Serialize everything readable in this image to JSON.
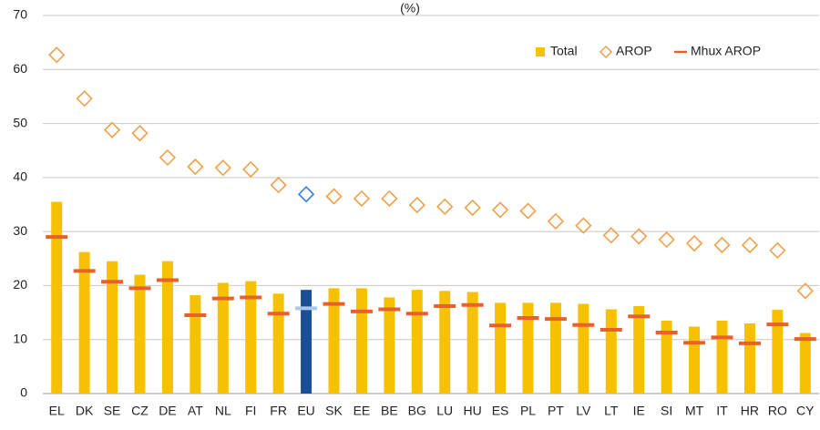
{
  "chart_data": {
    "type": "bar",
    "title": "(%)",
    "categories": [
      "EL",
      "DK",
      "SE",
      "CZ",
      "DE",
      "AT",
      "NL",
      "FI",
      "FR",
      "EU",
      "SK",
      "EE",
      "BE",
      "BG",
      "LU",
      "HU",
      "ES",
      "PL",
      "PT",
      "LV",
      "LT",
      "IE",
      "SI",
      "MT",
      "IT",
      "HR",
      "RO",
      "CY"
    ],
    "highlight": "EU",
    "series": [
      {
        "name": "Total",
        "type": "bar",
        "color": "#f6c100",
        "highlight_color": "#1a4f96",
        "values": [
          35.5,
          26.2,
          24.5,
          22,
          24.5,
          18.2,
          20.5,
          20.8,
          18.5,
          19.2,
          19.5,
          19.5,
          17.8,
          19.2,
          19,
          18.8,
          16.8,
          16.8,
          16.8,
          16.6,
          15.6,
          16.2,
          13.5,
          12.4,
          13.5,
          13,
          15.5,
          11.2
        ]
      },
      {
        "name": "AROP",
        "type": "diamond",
        "color": "#f0a04b",
        "highlight_color": "#3a7de0",
        "values": [
          62.7,
          54.6,
          48.8,
          48.2,
          43.7,
          42,
          41.8,
          41.5,
          38.6,
          36.9,
          36.5,
          36.1,
          36.1,
          34.9,
          34.6,
          34.4,
          34,
          33.8,
          31.9,
          31.1,
          29.3,
          29.1,
          28.5,
          27.8,
          27.5,
          27.5,
          26.5,
          19
        ]
      },
      {
        "name": "Mhux AROP",
        "type": "dash",
        "color": "#e8602c",
        "highlight_color": "#a9c8ee",
        "values": [
          29,
          22.7,
          20.7,
          19.5,
          21,
          14.5,
          17.6,
          17.8,
          14.8,
          15.8,
          16.6,
          15.2,
          15.6,
          14.8,
          16.2,
          16.4,
          12.6,
          14,
          13.8,
          12.7,
          11.8,
          14.3,
          11.3,
          9.4,
          10.4,
          9.3,
          12.8,
          10.1
        ]
      }
    ],
    "ylim": [
      0,
      70
    ],
    "yticks": [
      0,
      10,
      20,
      30,
      40,
      50,
      60,
      70
    ],
    "grid": true,
    "legend": "top-right"
  }
}
